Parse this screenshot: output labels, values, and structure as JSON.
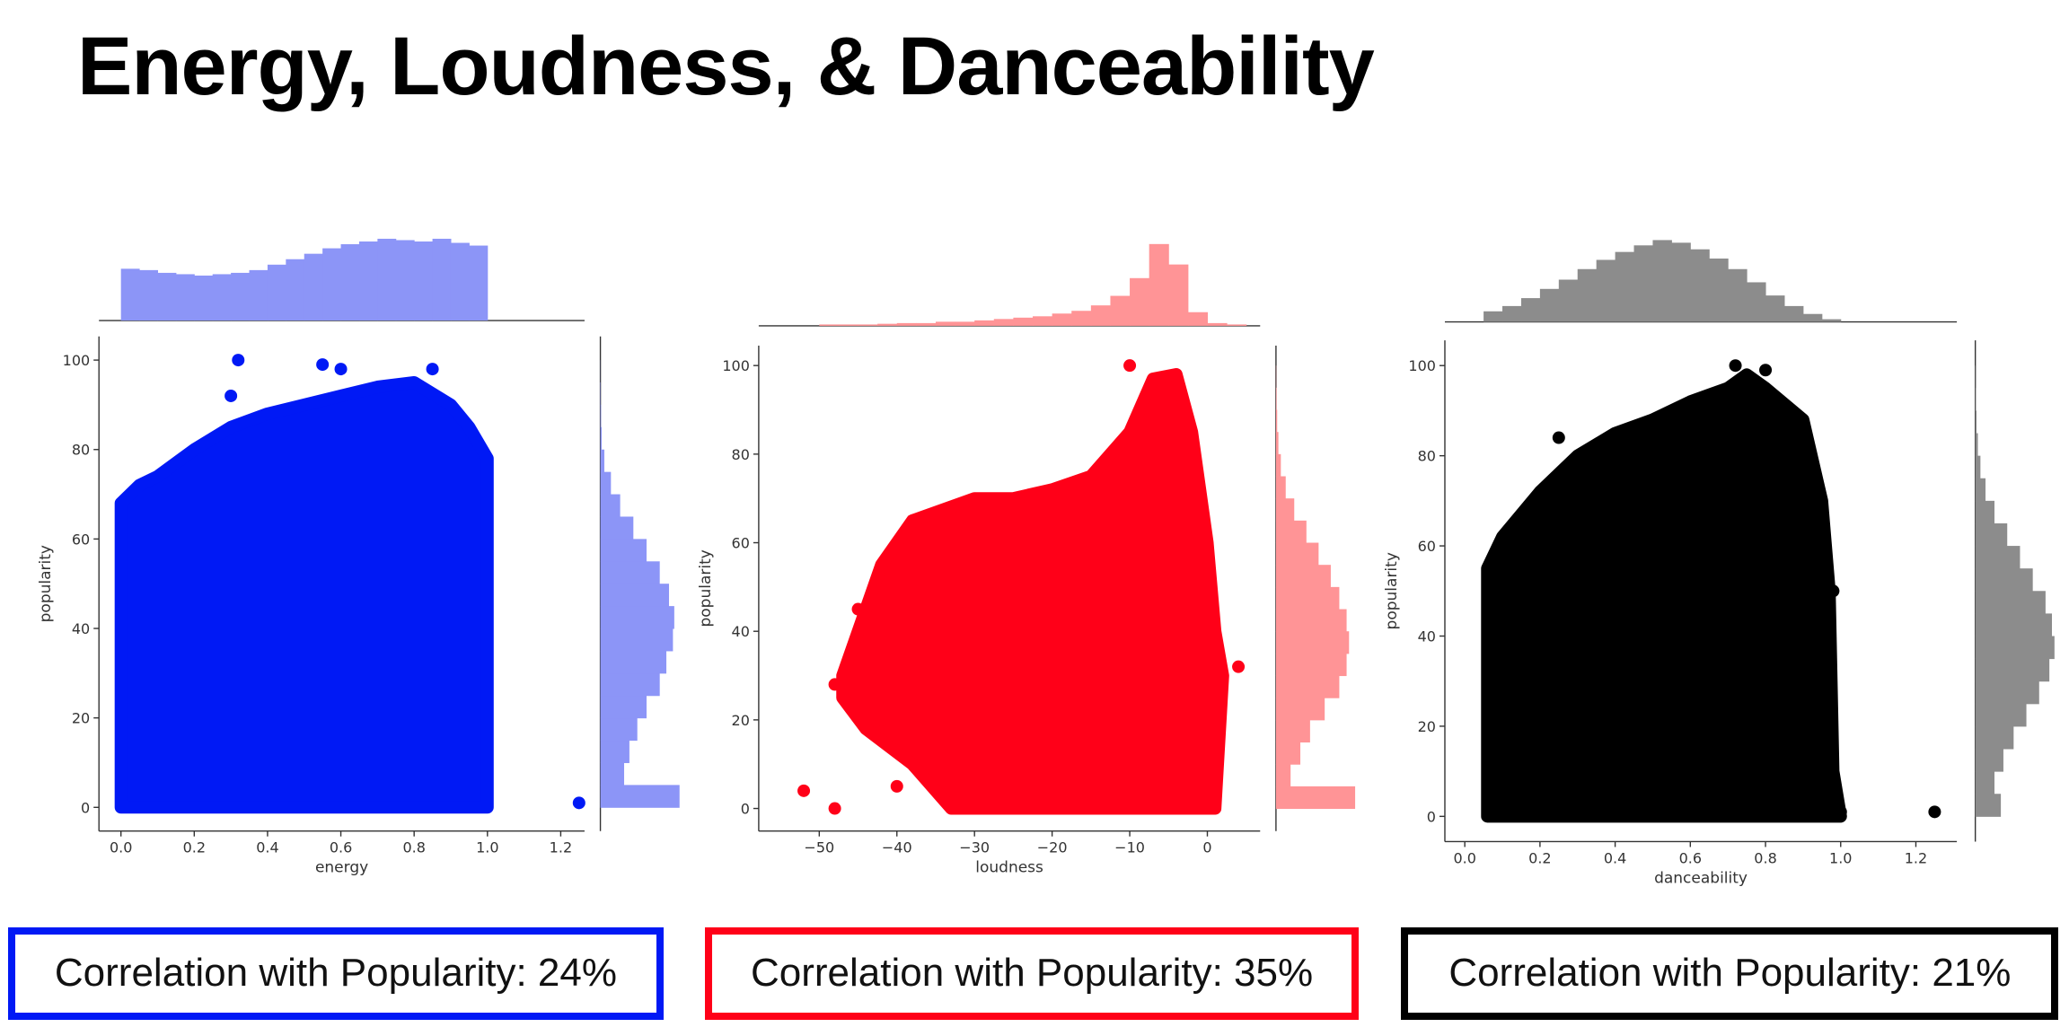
{
  "title": "Energy, Loudness, & Danceability",
  "chart_data": [
    {
      "type": "scatter",
      "x_label": "energy",
      "y_label": "popularity",
      "color": "#0019f5",
      "xlim": [
        -0.06,
        1.265
      ],
      "ylim": [
        -5.3,
        105.3
      ],
      "xticks": [
        {
          "value": 0,
          "label": "0.0"
        },
        0.2,
        0.4,
        0.6,
        0.8,
        {
          "value": 1,
          "label": "1.0"
        },
        1.2
      ],
      "yticks": [
        0,
        20,
        40,
        60,
        80,
        100
      ],
      "envelope": {
        "x": [
          0,
          0,
          0.05,
          0.1,
          0.2,
          0.3,
          0.4,
          0.5,
          0.6,
          0.7,
          0.8,
          0.9,
          0.95,
          1.0,
          1.0
        ],
        "y": [
          0,
          68,
          72,
          74,
          80,
          85,
          88,
          90,
          92,
          94,
          95,
          90,
          85,
          78,
          0
        ]
      },
      "x": [
        0.32,
        0.55,
        0.6,
        0.85,
        0.3,
        1.25
      ],
      "y": [
        100,
        99,
        98,
        98,
        92,
        1
      ],
      "marginal_x": {
        "color": "#8c95f7",
        "bins": [
          0,
          0.05,
          0.1,
          0.15,
          0.2,
          0.25,
          0.3,
          0.35,
          0.4,
          0.45,
          0.5,
          0.55,
          0.6,
          0.65,
          0.7,
          0.75,
          0.8,
          0.85,
          0.9,
          0.95,
          1.0
        ],
        "counts": [
          38,
          37,
          35,
          34,
          33,
          34,
          35,
          37,
          41,
          45,
          49,
          53,
          56,
          58,
          60,
          59,
          58,
          60,
          57,
          55
        ]
      },
      "marginal_y": {
        "color": "#8c95f7",
        "bins": [
          0,
          5,
          10,
          15,
          20,
          25,
          30,
          35,
          40,
          45,
          50,
          55,
          60,
          65,
          70,
          75,
          80,
          85,
          90,
          95,
          100
        ],
        "counts": [
          60,
          18,
          22,
          28,
          35,
          45,
          50,
          55,
          56,
          52,
          45,
          35,
          25,
          15,
          8,
          3,
          1,
          0.5,
          0.3,
          0.1
        ]
      },
      "caption": "Correlation with Popularity: 24%"
    },
    {
      "type": "scatter",
      "x_label": "loudness",
      "y_label": "popularity",
      "color": "#ff0018",
      "xlim": [
        -57.8,
        6.8
      ],
      "ylim": [
        -5.1,
        104.5
      ],
      "xticks": [
        {
          "value": -50,
          "label": "−50"
        },
        {
          "value": -40,
          "label": "−40"
        },
        {
          "value": -30,
          "label": "−30"
        },
        {
          "value": -20,
          "label": "−20"
        },
        {
          "value": -10,
          "label": "−10"
        },
        0
      ],
      "yticks": [
        0,
        20,
        40,
        60,
        80,
        100
      ],
      "envelope": {
        "x": [
          -47,
          -42,
          -38,
          -30,
          -25,
          -20,
          -15,
          -10,
          -7,
          -4,
          -2,
          0,
          1,
          2,
          1,
          -33,
          -38,
          -44,
          -47
        ],
        "y": [
          30,
          55,
          65,
          70,
          70,
          72,
          75,
          85,
          97,
          98,
          85,
          60,
          40,
          30,
          0,
          0,
          10,
          18,
          25
        ]
      },
      "x": [
        -52,
        -48,
        -42,
        4,
        -45,
        -48,
        -40,
        -10
      ],
      "y": [
        4,
        0,
        20,
        32,
        45,
        28,
        5,
        100
      ],
      "marginal_x": {
        "color": "#ff9496",
        "bins": [
          -50,
          -47.5,
          -45,
          -42.5,
          -40,
          -37.5,
          -35,
          -32.5,
          -30,
          -27.5,
          -25,
          -22.5,
          -20,
          -17.5,
          -15,
          -12.5,
          -10,
          -7.5,
          -5,
          -2.5,
          0,
          2.5,
          5
        ],
        "counts": [
          1,
          1,
          1,
          1.5,
          2,
          2,
          3,
          3,
          4,
          5,
          6,
          7,
          9,
          11,
          15,
          22,
          35,
          60,
          45,
          10,
          2,
          1
        ]
      },
      "marginal_y": {
        "color": "#ff9496",
        "bins": [
          0,
          5,
          10,
          15,
          20,
          25,
          30,
          35,
          40,
          45,
          50,
          55,
          60,
          65,
          70,
          75,
          80,
          85,
          90,
          95,
          100
        ],
        "counts": [
          65,
          12,
          20,
          28,
          40,
          52,
          58,
          60,
          58,
          52,
          45,
          35,
          25,
          15,
          8,
          4,
          2,
          1,
          0.5,
          0.2
        ]
      },
      "caption": "Correlation with Popularity: 35%"
    },
    {
      "type": "scatter",
      "x_label": "danceability",
      "y_label": "popularity",
      "color": "#000000",
      "xlim": [
        -0.053,
        1.309
      ],
      "ylim": [
        -5.6,
        105.6
      ],
      "xticks": [
        {
          "value": 0,
          "label": "0.0"
        },
        0.2,
        0.4,
        0.6,
        0.8,
        {
          "value": 1,
          "label": "1.0"
        },
        1.2
      ],
      "yticks": [
        0,
        20,
        40,
        60,
        80,
        100
      ],
      "envelope": {
        "x": [
          0.06,
          0.06,
          0.1,
          0.2,
          0.3,
          0.4,
          0.5,
          0.6,
          0.7,
          0.75,
          0.8,
          0.9,
          0.95,
          0.97,
          0.98,
          1.0
        ],
        "y": [
          0,
          55,
          62,
          72,
          80,
          85,
          88,
          92,
          95,
          98,
          95,
          88,
          70,
          50,
          10,
          0
        ]
      },
      "x": [
        0.72,
        0.8,
        0.98,
        1.0,
        1.25,
        0.25
      ],
      "y": [
        100,
        99,
        50,
        1,
        1,
        84
      ],
      "marginal_x": {
        "color": "#8c8c8c",
        "bins": [
          0.05,
          0.1,
          0.15,
          0.2,
          0.25,
          0.3,
          0.35,
          0.4,
          0.45,
          0.5,
          0.55,
          0.6,
          0.65,
          0.7,
          0.75,
          0.8,
          0.85,
          0.9,
          0.95,
          1.0
        ],
        "counts": [
          8,
          12,
          18,
          25,
          32,
          40,
          47,
          53,
          58,
          62,
          60,
          55,
          48,
          40,
          30,
          20,
          12,
          6,
          2
        ]
      },
      "marginal_y": {
        "color": "#8c8c8c",
        "bins": [
          0,
          5,
          10,
          15,
          20,
          25,
          30,
          35,
          40,
          45,
          50,
          55,
          60,
          65,
          70,
          75,
          80,
          85,
          90,
          95,
          100
        ],
        "counts": [
          20,
          15,
          22,
          30,
          40,
          50,
          58,
          62,
          60,
          55,
          45,
          35,
          25,
          15,
          8,
          4,
          2,
          1,
          0.5,
          0.2
        ]
      },
      "caption": "Correlation with Popularity: 21%"
    }
  ]
}
